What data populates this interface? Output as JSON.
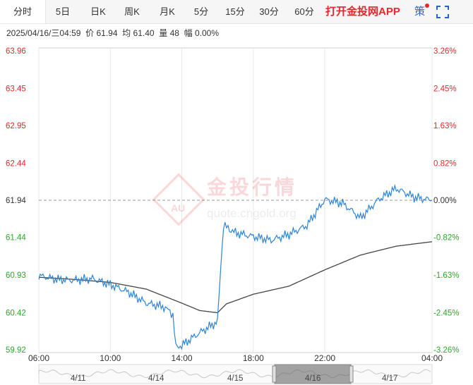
{
  "tabs": [
    {
      "label": "分时",
      "active": true
    },
    {
      "label": "5日"
    },
    {
      "label": "日K"
    },
    {
      "label": "周K"
    },
    {
      "label": "月K"
    },
    {
      "label": "5分"
    },
    {
      "label": "15分"
    },
    {
      "label": "30分"
    },
    {
      "label": "60分"
    }
  ],
  "app_link": "打开金投网APP",
  "strategy": "策",
  "fullscreen_icon": "fullscreen-icon",
  "info": {
    "datetime": "2025/04/16/三04:59",
    "price_label": "价",
    "price": "61.94",
    "avg_label": "均",
    "avg": "61.40",
    "vol_label": "量",
    "vol": "48",
    "range_label": "幅",
    "range": "0.00%"
  },
  "watermark": {
    "brand": "金投行情",
    "url": "quote.cngold.org",
    "logo": "AU"
  },
  "colors": {
    "up": "#e8262c",
    "down": "#2aa82a",
    "price_line": "#2f84d6",
    "avg_line": "#444444",
    "grid": "#e8e8e8"
  },
  "chart_data": {
    "type": "line",
    "y_labels_left": [
      "63.96",
      "63.45",
      "62.95",
      "62.44",
      "61.94",
      "61.44",
      "60.93",
      "60.42",
      "59.92"
    ],
    "y_labels_right": [
      "3.26%",
      "2.45%",
      "1.63%",
      "0.82%",
      "0.00%",
      "-0.82%",
      "-1.63%",
      "-2.45%",
      "-3.26%"
    ],
    "ylim": [
      59.92,
      63.96
    ],
    "prev_close": 61.94,
    "x_labels": [
      "06:00",
      "10:00",
      "14:00",
      "18:00",
      "22:00",
      "04:00"
    ],
    "series": [
      {
        "points": [
          [
            "06:00",
            60.92
          ],
          [
            "07:00",
            60.87
          ],
          [
            "08:00",
            60.86
          ],
          [
            "09:00",
            60.88
          ],
          [
            "10:00",
            60.8
          ],
          [
            "11:00",
            60.7
          ],
          [
            "12:00",
            60.55
          ],
          [
            "13:00",
            60.5
          ],
          [
            "13:30",
            60.4
          ],
          [
            "13:40",
            59.95
          ],
          [
            "14:00",
            59.98
          ],
          [
            "15:00",
            60.15
          ],
          [
            "16:00",
            60.3
          ],
          [
            "16:10",
            61.0
          ],
          [
            "16:20",
            61.6
          ],
          [
            "17:00",
            61.5
          ],
          [
            "18:00",
            61.45
          ],
          [
            "19:00",
            61.4
          ],
          [
            "20:00",
            61.48
          ],
          [
            "21:00",
            61.6
          ],
          [
            "22:00",
            61.95
          ],
          [
            "23:00",
            61.9
          ],
          [
            "00:00",
            61.7
          ],
          [
            "01:00",
            61.95
          ],
          [
            "02:00",
            62.1
          ],
          [
            "03:00",
            61.98
          ],
          [
            "04:00",
            61.94
          ]
        ]
      },
      {
        "points": [
          [
            "06:00",
            60.9
          ],
          [
            "08:00",
            60.87
          ],
          [
            "10:00",
            60.83
          ],
          [
            "12:00",
            60.74
          ],
          [
            "14:00",
            60.55
          ],
          [
            "15:00",
            60.45
          ],
          [
            "16:00",
            60.42
          ],
          [
            "16:30",
            60.54
          ],
          [
            "18:00",
            60.67
          ],
          [
            "20:00",
            60.78
          ],
          [
            "22:00",
            61.0
          ],
          [
            "00:00",
            61.2
          ],
          [
            "02:00",
            61.32
          ],
          [
            "04:00",
            61.38
          ]
        ]
      }
    ],
    "navigator_labels": [
      "4/11",
      "4/14",
      "4/15",
      "4/16",
      "4/17"
    ]
  }
}
